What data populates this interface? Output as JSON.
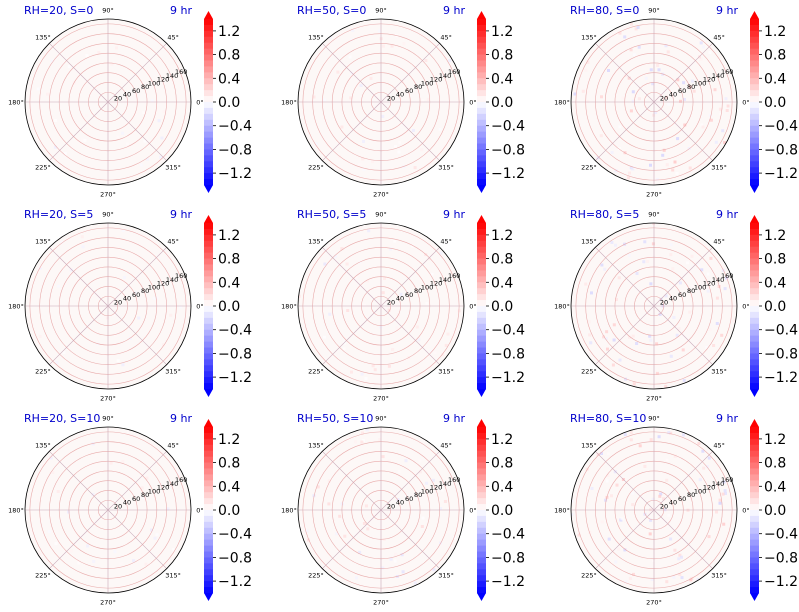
{
  "chart_data": {
    "type": "polar heatmap",
    "rows": 3,
    "cols": 3,
    "time_label": "9 hr",
    "title_color": "#0000cc",
    "angle_ticks": [
      "0°",
      "45°",
      "90°",
      "135°",
      "180°",
      "225°",
      "270°",
      "315°"
    ],
    "radial_ticks": [
      "20",
      "40",
      "60",
      "80",
      "100",
      "120",
      "140",
      "160"
    ],
    "rmax": 170,
    "colorbar": {
      "ticks": [
        "1.2",
        "0.8",
        "0.4",
        "0.0",
        "−0.4",
        "−0.8",
        "−1.2"
      ],
      "tick_values": [
        1.2,
        0.8,
        0.4,
        0.0,
        -0.4,
        -0.8,
        -1.2
      ],
      "vmin": -1.4,
      "vmax": 1.4,
      "cmap": "bwr",
      "extend": "both"
    },
    "panels": [
      {
        "title": "RH=20, S=0",
        "rh": 20,
        "s": 0,
        "speckle": 0.25
      },
      {
        "title": "RH=50, S=0",
        "rh": 50,
        "s": 0,
        "speckle": 0.35
      },
      {
        "title": "RH=80, S=0",
        "rh": 80,
        "s": 0,
        "speckle": 0.75
      },
      {
        "title": "RH=20, S=5",
        "rh": 20,
        "s": 5,
        "speckle": 0.25
      },
      {
        "title": "RH=50, S=5",
        "rh": 50,
        "s": 5,
        "speckle": 0.4
      },
      {
        "title": "RH=80, S=5",
        "rh": 80,
        "s": 5,
        "speckle": 0.65
      },
      {
        "title": "RH=20, S=10",
        "rh": 20,
        "s": 10,
        "speckle": 0.3
      },
      {
        "title": "RH=50, S=10",
        "rh": 50,
        "s": 10,
        "speckle": 0.45
      },
      {
        "title": "RH=80, S=10",
        "rh": 80,
        "s": 10,
        "speckle": 0.7
      }
    ]
  }
}
